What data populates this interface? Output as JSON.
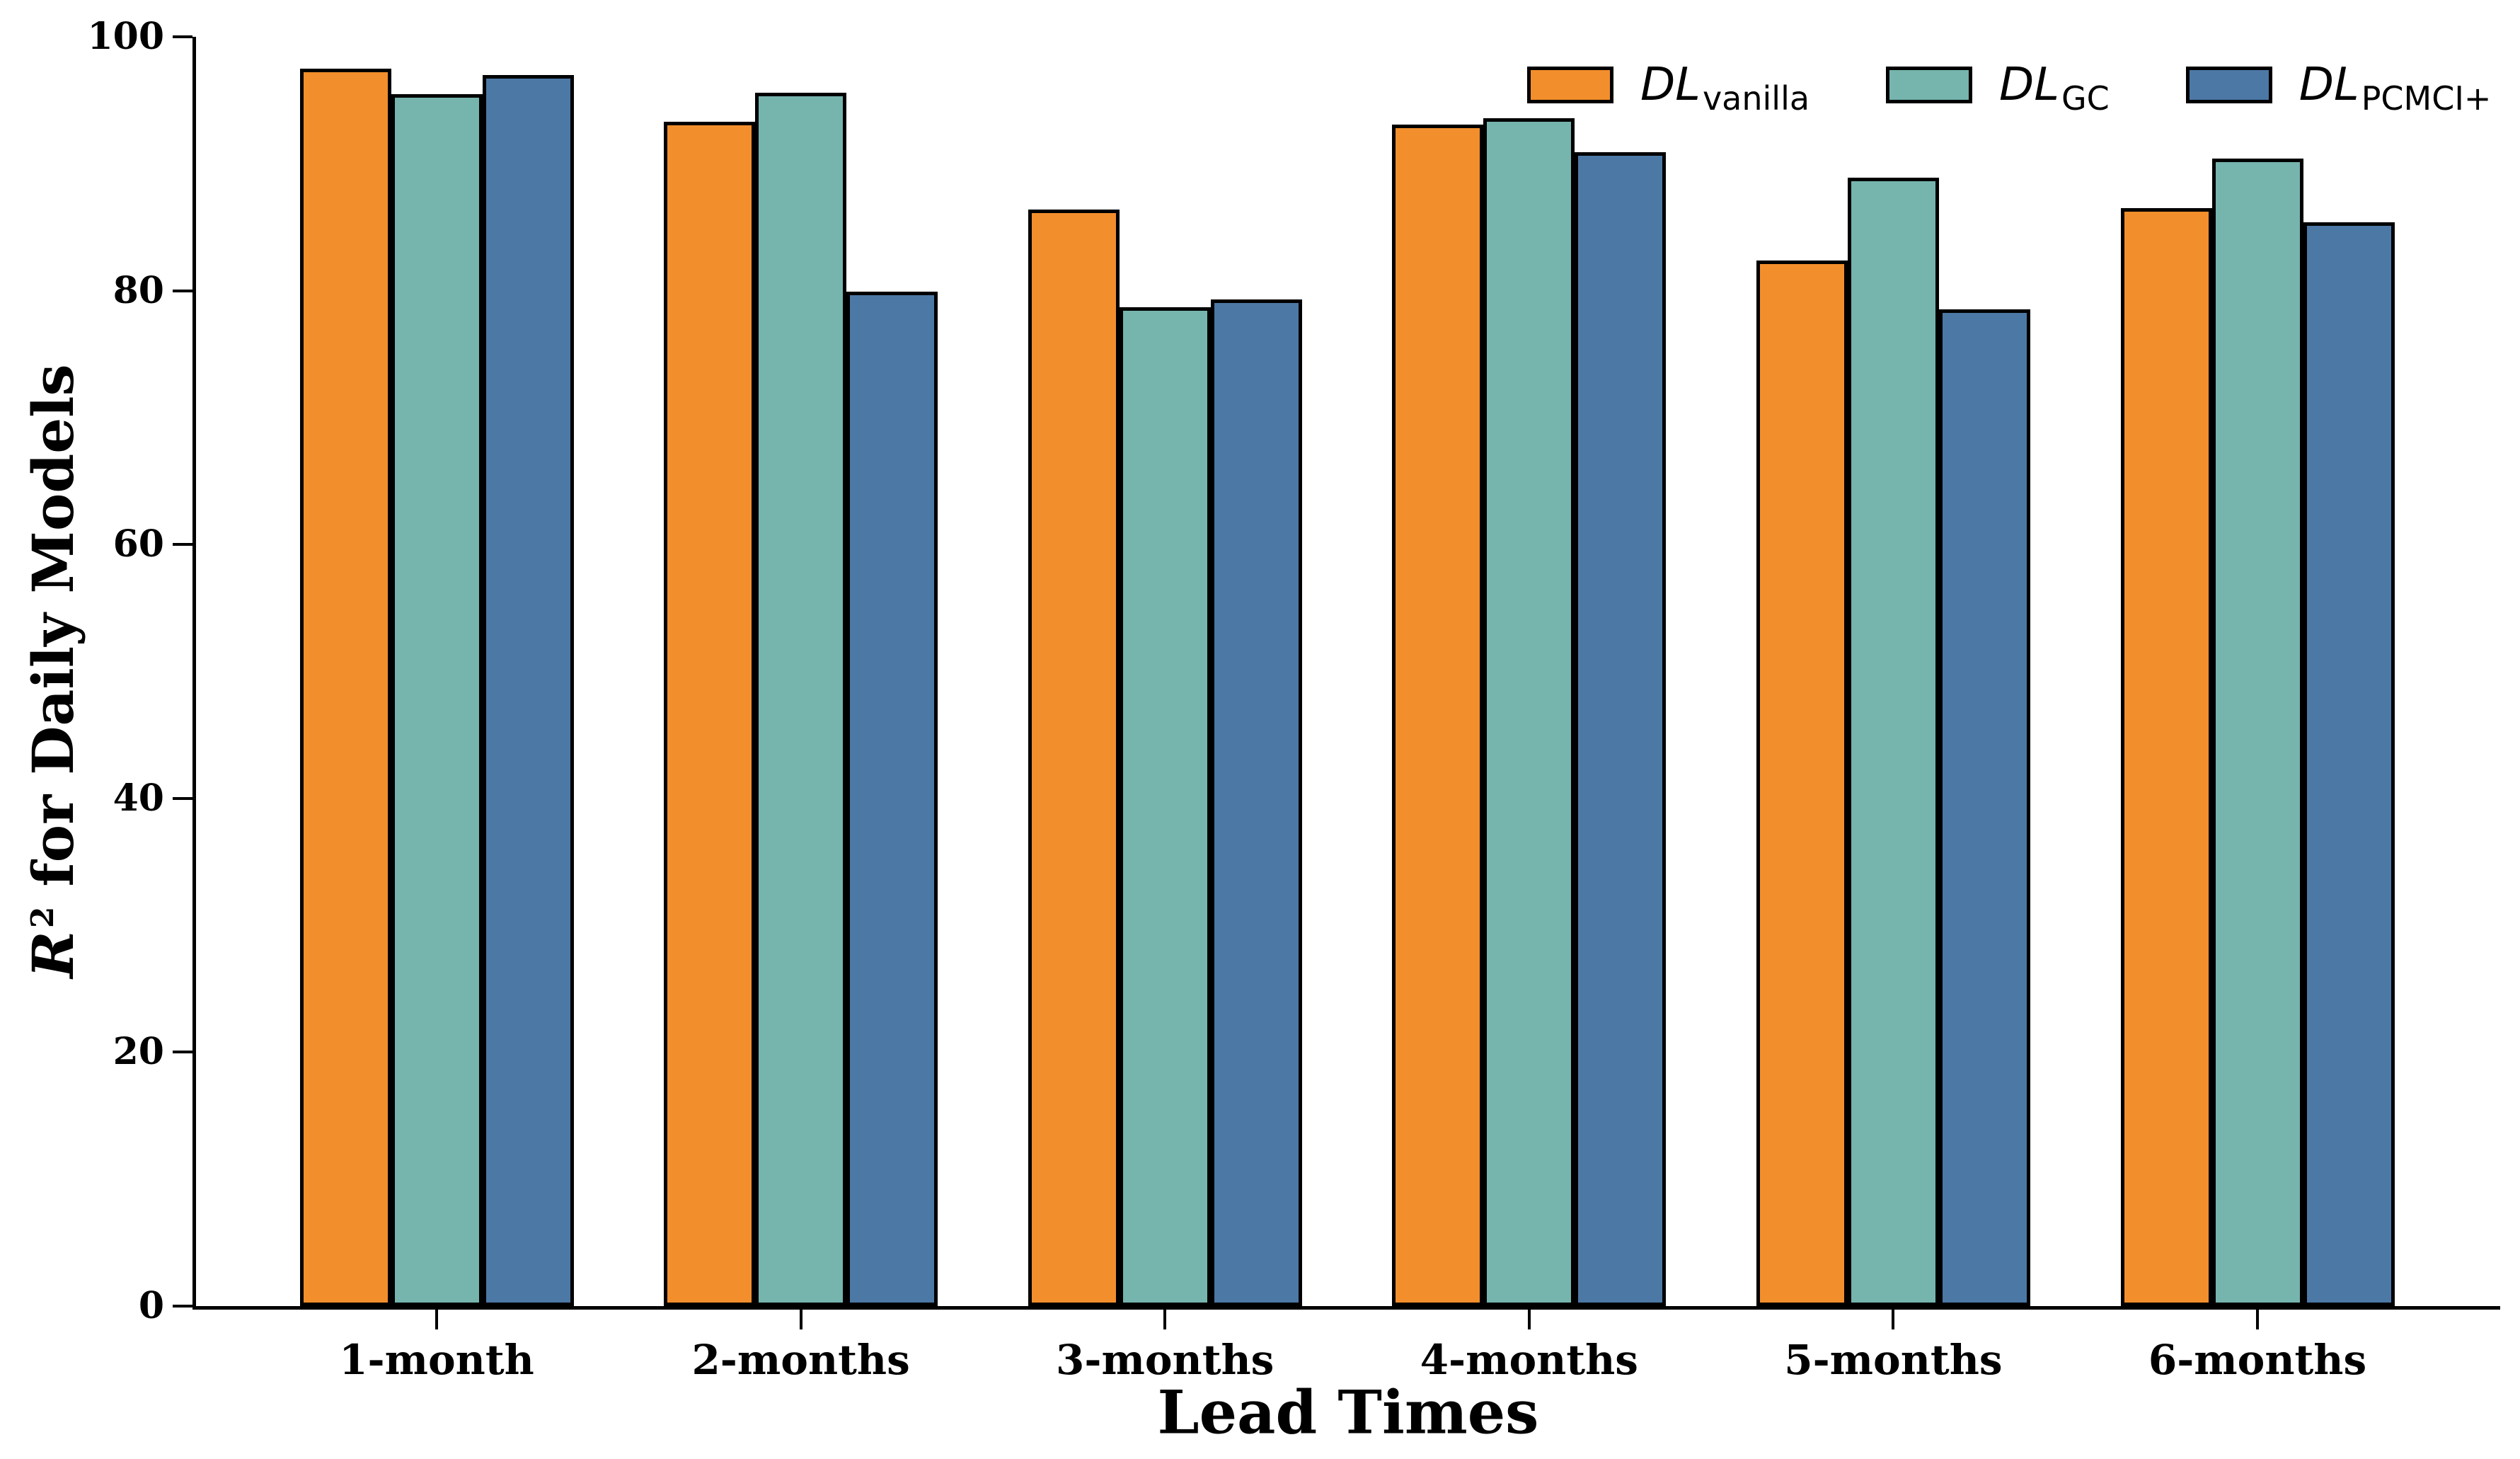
{
  "figure": {
    "background": "#ffffff",
    "axis_color": "#000000"
  },
  "chart_data": {
    "type": "bar",
    "title": "",
    "xlabel": "Lead Times",
    "ylabel": {
      "r": "R",
      "sup": "2",
      "rest": " for Daily Models"
    },
    "categories": [
      "1-month",
      "2-months",
      "3-months",
      "4-months",
      "5-months",
      "6-months"
    ],
    "series": [
      {
        "name": "DL-vanilla",
        "label_main": "DL",
        "label_sub": "vanilla",
        "color": "#F28E2C",
        "values": [
          97.5,
          93.3,
          86.4,
          93.1,
          82.4,
          86.5
        ]
      },
      {
        "name": "DL-GC",
        "label_main": "DL",
        "label_sub": "GC",
        "color": "#76B4AE",
        "values": [
          95.5,
          95.6,
          78.7,
          93.6,
          88.9,
          90.4
        ]
      },
      {
        "name": "DL-PCMCI+",
        "label_main": "DL",
        "label_sub": "PCMCI+",
        "color": "#4C78A5",
        "values": [
          97.0,
          79.9,
          79.3,
          90.9,
          78.5,
          85.4
        ]
      }
    ],
    "ylim": [
      0,
      100
    ],
    "yticks": [
      "0",
      "20",
      "40",
      "60",
      "80",
      "100"
    ],
    "grid": false,
    "legend_position": "upper right",
    "bar_edge_color": "#000000"
  }
}
